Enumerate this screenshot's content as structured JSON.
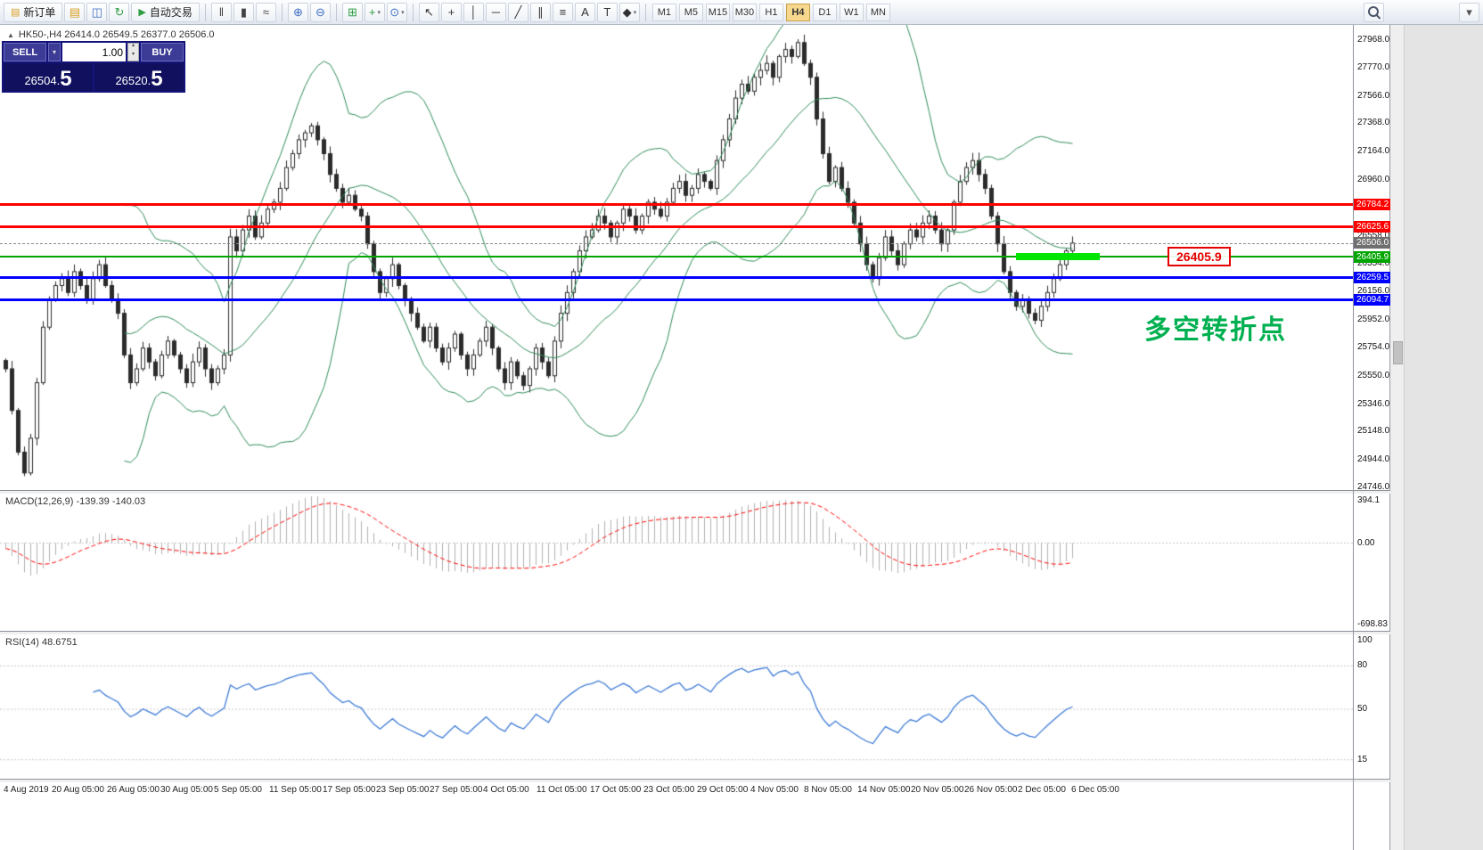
{
  "icons": {
    "dropdown": "▾",
    "spinner_up": "▴",
    "spinner_down": "▾",
    "chart_menu": "▲"
  },
  "toolbar": {
    "timeframes": [
      "M1",
      "M5",
      "M15",
      "M30",
      "H1",
      "H4",
      "D1",
      "W1",
      "MN"
    ],
    "active_timeframe": "H4",
    "items": [
      {
        "type": "button",
        "name": "new-order-button",
        "icon": "▤",
        "icon_color": "#d89c20",
        "icon_name": "new-order-icon",
        "label": "新订单"
      },
      {
        "type": "icon",
        "name": "ledger-icon",
        "glyph": "▤",
        "color": "#d89c20"
      },
      {
        "type": "icon",
        "name": "market-watch-icon",
        "glyph": "◫",
        "color": "#3b6fc4"
      },
      {
        "type": "icon",
        "name": "refresh-icon",
        "glyph": "↻",
        "color": "#2f9e44"
      },
      {
        "type": "button",
        "name": "autotrade-button",
        "icon": "▶",
        "icon_color": "#2f9e44",
        "icon_name": "autotrade-play-icon",
        "label": "自动交易"
      },
      {
        "type": "sep"
      },
      {
        "type": "icon",
        "name": "bar-chart-icon",
        "glyph": "‖",
        "color": "#444"
      },
      {
        "type": "icon",
        "name": "candlestick-icon",
        "glyph": "▮",
        "color": "#444"
      },
      {
        "type": "icon",
        "name": "line-chart-icon",
        "glyph": "≈",
        "color": "#444"
      },
      {
        "type": "sep"
      },
      {
        "type": "icon",
        "name": "zoom-in-icon",
        "glyph": "⊕",
        "color": "#3b6fc4"
      },
      {
        "type": "icon",
        "name": "zoom-out-icon",
        "glyph": "⊖",
        "color": "#3b6fc4"
      },
      {
        "type": "sep"
      },
      {
        "type": "icon",
        "name": "tile-windows-icon",
        "glyph": "⊞",
        "color": "#2f9e44"
      },
      {
        "type": "icon",
        "name": "indicators-icon",
        "glyph": "+",
        "color": "#2f9e44",
        "dropdown": true
      },
      {
        "type": "icon",
        "name": "periods-icon",
        "glyph": "⊙",
        "color": "#3b6fc4",
        "dropdown": true
      },
      {
        "type": "sep"
      },
      {
        "type": "icon",
        "name": "cursor-icon",
        "glyph": "↖",
        "color": "#333"
      },
      {
        "type": "icon",
        "name": "crosshair-icon",
        "glyph": "+",
        "color": "#333"
      },
      {
        "type": "icon",
        "name": "vertical-line-icon",
        "glyph": "│",
        "color": "#333"
      },
      {
        "type": "icon",
        "name": "horizontal-line-icon",
        "glyph": "─",
        "color": "#333"
      },
      {
        "type": "icon",
        "name": "trendline-icon",
        "glyph": "╱",
        "color": "#333"
      },
      {
        "type": "icon",
        "name": "equidistant-channel-icon",
        "glyph": "∥",
        "color": "#333"
      },
      {
        "type": "icon",
        "name": "fibonacci-icon",
        "glyph": "≡",
        "color": "#333"
      },
      {
        "type": "icon",
        "name": "text-icon",
        "glyph": "A",
        "color": "#333"
      },
      {
        "type": "icon",
        "name": "text-label-icon",
        "glyph": "T",
        "color": "#333"
      },
      {
        "type": "icon",
        "name": "arrows-icon",
        "glyph": "◆",
        "color": "#333",
        "dropdown": true
      },
      {
        "type": "sep"
      },
      {
        "type": "timeframes"
      },
      {
        "type": "spacer"
      },
      {
        "type": "search",
        "name": "search-icon"
      },
      {
        "type": "gap",
        "w": 80
      },
      {
        "type": "icon",
        "name": "toolbar-menu-icon",
        "glyph": "▾",
        "color": "#555"
      }
    ]
  },
  "chart": {
    "header": "HK50-,H4 26414.0 26549.5 26377.0 26506.0",
    "price_axis_labels": [
      "27968.0",
      "27770.0",
      "27566.0",
      "27368.0",
      "27164.0",
      "26960.0",
      "26760.0",
      "26558.0",
      "26354.0",
      "26156.0",
      "25952.0",
      "25754.0",
      "25550.0",
      "25346.0",
      "25148.0",
      "24944.0",
      "24746.0"
    ]
  },
  "trade_panel": {
    "sell_label": "SELL",
    "buy_label": "BUY",
    "volume": "1.00",
    "sell_price_small": "26504.",
    "sell_price_big": "5",
    "buy_price_small": "26520.",
    "buy_price_big": "5"
  },
  "annotations": {
    "price_callout": "26405.9",
    "turning_point_text": "多空转折点",
    "turning_point_color": "#00b050",
    "highlight_band": {
      "price": 26405.9,
      "x_from": 1140,
      "x_to": 1234,
      "color": "#00e600"
    }
  },
  "chart_data": {
    "type": "candlestick",
    "symbol": "HK50-",
    "timeframe": "H4",
    "ohlc": {
      "open": 26414.0,
      "high": 26549.5,
      "low": 26377.0,
      "close": 26506.0
    },
    "ylim": [
      24727,
      28077
    ],
    "closes": [
      25600,
      25300,
      25000,
      24850,
      25100,
      25500,
      25900,
      26100,
      26200,
      26250,
      26150,
      26300,
      26200,
      26100,
      26250,
      26350,
      26200,
      26100,
      26000,
      25700,
      25500,
      25600,
      25750,
      25650,
      25550,
      25700,
      25800,
      25700,
      25600,
      25500,
      25650,
      25750,
      25600,
      25500,
      25600,
      25700,
      26550,
      26450,
      26600,
      26700,
      26550,
      26650,
      26750,
      26800,
      26900,
      27050,
      27150,
      27250,
      27300,
      27350,
      27250,
      27150,
      27000,
      26900,
      26800,
      26850,
      26750,
      26700,
      26500,
      26300,
      26150,
      26250,
      26350,
      26200,
      26100,
      26000,
      25900,
      25800,
      25900,
      25750,
      25650,
      25750,
      25850,
      25700,
      25600,
      25700,
      25800,
      25900,
      25750,
      25600,
      25500,
      25650,
      25550,
      25480,
      25600,
      25750,
      25650,
      25550,
      25800,
      26000,
      26150,
      26300,
      26450,
      26550,
      26600,
      26700,
      26650,
      26550,
      26650,
      26750,
      26700,
      26600,
      26700,
      26800,
      26750,
      26700,
      26800,
      26900,
      26950,
      26850,
      26900,
      27000,
      26950,
      26900,
      27100,
      27250,
      27400,
      27550,
      27650,
      27600,
      27700,
      27750,
      27800,
      27700,
      27850,
      27900,
      27850,
      27950,
      27800,
      27700,
      27400,
      27150,
      26950,
      27050,
      26900,
      26800,
      26650,
      26500,
      26350,
      26250,
      26400,
      26550,
      26450,
      26350,
      26500,
      26600,
      26550,
      26650,
      26700,
      26600,
      26500,
      26600,
      26800,
      26950,
      27050,
      27100,
      27000,
      26900,
      26700,
      26500,
      26300,
      26150,
      26050,
      26100,
      26000,
      25950,
      26050,
      26150,
      26250,
      26350,
      26450,
      26506
    ],
    "bollinger": {
      "period": 20,
      "deviation": 2,
      "color": "#2e8b57"
    },
    "levels": [
      {
        "price": 26784.2,
        "color": "#ff0000",
        "label": "26784.2",
        "thickness": 3
      },
      {
        "price": 26625.6,
        "color": "#ff0000",
        "label": "26625.6",
        "thickness": 3
      },
      {
        "price": 26405.9,
        "color": "#00a500",
        "label": "26405.9",
        "thickness": 2
      },
      {
        "price": 26259.5,
        "color": "#0000ff",
        "label": "26259.5",
        "thickness": 3
      },
      {
        "price": 26094.7,
        "color": "#0000ff",
        "label": "26094.7",
        "thickness": 3
      }
    ],
    "current_price": {
      "price": 26506.0,
      "label": "26506.0",
      "color": "#6f6f6f"
    },
    "macd": {
      "params": [
        12,
        26,
        9
      ],
      "display": "MACD(12,26,9) -139.39 -140.03",
      "range": [
        -698.83,
        394.1
      ],
      "axis_labels": [
        "394.1",
        "0.00",
        "-698.83"
      ],
      "histogram_color": "#b0b0b0",
      "signal_color": "#ff0000"
    },
    "rsi": {
      "period": 14,
      "display": "RSI(14) 48.6751",
      "levels": [
        100,
        80,
        50,
        15
      ],
      "line_color": "#3e7bd6"
    },
    "x_axis": [
      "4 Aug 2019",
      "20 Aug 05:00",
      "26 Aug 05:00",
      "30 Aug 05:00",
      "5 Sep 05:00",
      "11 Sep 05:00",
      "17 Sep 05:00",
      "23 Sep 05:00",
      "27 Sep 05:00",
      "4 Oct 05:00",
      "11 Oct 05:00",
      "17 Oct 05:00",
      "23 Oct 05:00",
      "29 Oct 05:00",
      "4 Nov 05:00",
      "8 Nov 05:00",
      "14 Nov 05:00",
      "20 Nov 05:00",
      "26 Nov 05:00",
      "2 Dec 05:00",
      "6 Dec 05:00"
    ]
  }
}
